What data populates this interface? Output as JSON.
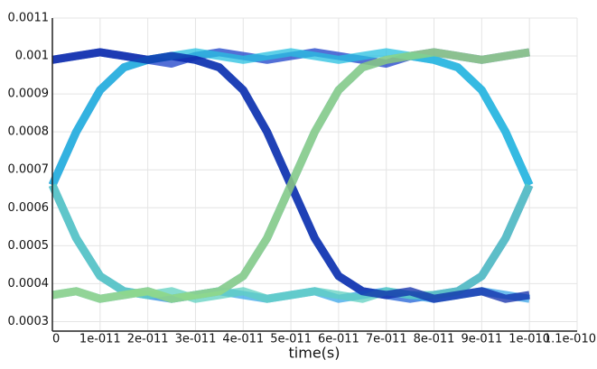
{
  "chart_data": {
    "type": "line",
    "x_label": "time(s)",
    "x": [
      0,
      5e-12,
      1e-11,
      1.5e-11,
      2e-11,
      2.5e-11,
      3e-11,
      3.5e-11,
      4e-11,
      4.5e-11,
      5e-11,
      5.5e-11,
      6e-11,
      6.5e-11,
      7e-11,
      7.5e-11,
      8e-11,
      8.5e-11,
      9e-11,
      9.5e-11,
      1e-10
    ],
    "series": [
      {
        "color": "#1f5fd6",
        "values": [
          0.00066,
          0.0008,
          0.00091,
          0.00097,
          0.00099,
          0.001,
          0.00099,
          0.00097,
          0.00091,
          0.0008,
          0.00066,
          0.00052,
          0.00042,
          0.00038,
          0.00037,
          0.00036,
          0.00037,
          0.00038,
          0.00042,
          0.00052,
          0.00066
        ]
      },
      {
        "color": "#2a8be0",
        "values": [
          0.00066,
          0.00052,
          0.00042,
          0.00038,
          0.00037,
          0.00036,
          0.00037,
          0.00038,
          0.00042,
          0.00052,
          0.00066,
          0.0008,
          0.00091,
          0.00097,
          0.00099,
          0.001,
          0.00099,
          0.00097,
          0.00091,
          0.0008,
          0.00066
        ]
      },
      {
        "color": "#1a3fc8",
        "values": [
          0.00099,
          0.001,
          0.00101,
          0.001,
          0.00099,
          0.00098,
          0.001,
          0.00101,
          0.001,
          0.00099,
          0.001,
          0.00101,
          0.001,
          0.00099,
          0.00098,
          0.001,
          0.00101,
          0.001,
          0.00099,
          0.001,
          0.00101
        ]
      },
      {
        "color": "#3aa6e8",
        "values": [
          0.00037,
          0.00038,
          0.00036,
          0.00037,
          0.00038,
          0.00036,
          0.00037,
          0.00038,
          0.00037,
          0.00036,
          0.00037,
          0.00038,
          0.00036,
          0.00037,
          0.00038,
          0.00037,
          0.00036,
          0.00037,
          0.00038,
          0.00037,
          0.00036
        ]
      },
      {
        "color": "#27c0e0",
        "values": [
          0.00066,
          0.0008,
          0.00091,
          0.00097,
          0.00099,
          0.001,
          0.00101,
          0.001,
          0.00099,
          0.001,
          0.00101,
          0.001,
          0.00099,
          0.001,
          0.00101,
          0.001,
          0.00099,
          0.00097,
          0.00091,
          0.0008,
          0.00066
        ]
      },
      {
        "color": "#5fd0c0",
        "values": [
          0.00066,
          0.00052,
          0.00042,
          0.00038,
          0.00037,
          0.00038,
          0.00036,
          0.00037,
          0.00038,
          0.00036,
          0.00037,
          0.00038,
          0.00037,
          0.00036,
          0.00038,
          0.00037,
          0.00037,
          0.00038,
          0.00042,
          0.00052,
          0.00066
        ]
      },
      {
        "color": "#0c2aa8",
        "values": [
          0.00099,
          0.001,
          0.00101,
          0.001,
          0.00099,
          0.001,
          0.00099,
          0.00097,
          0.00091,
          0.0008,
          0.00066,
          0.00052,
          0.00042,
          0.00038,
          0.00037,
          0.00038,
          0.00036,
          0.00037,
          0.00038,
          0.00036,
          0.00037
        ]
      },
      {
        "color": "#9fdc7a",
        "values": [
          0.00037,
          0.00038,
          0.00036,
          0.00037,
          0.00038,
          0.00036,
          0.00037,
          0.00038,
          0.00042,
          0.00052,
          0.00066,
          0.0008,
          0.00091,
          0.00097,
          0.00099,
          0.001,
          0.00101,
          0.001,
          0.00099,
          0.001,
          0.00101
        ]
      }
    ],
    "xlim": [
      0,
      1.1e-10
    ],
    "xticks": [
      0,
      {
        "value": 1e-11,
        "label": "1e-011"
      },
      {
        "value": 2e-11,
        "label": "2e-011"
      },
      {
        "value": 3e-11,
        "label": "3e-011"
      },
      {
        "value": 4e-11,
        "label": "4e-011"
      },
      {
        "value": 5e-11,
        "label": "5e-011"
      },
      {
        "value": 6e-11,
        "label": "6e-011"
      },
      {
        "value": 7e-11,
        "label": "7e-011"
      },
      {
        "value": 8e-11,
        "label": "8e-011"
      },
      {
        "value": 9e-11,
        "label": "9e-011"
      },
      {
        "value": 1e-10,
        "label": "1e-010"
      },
      {
        "value": 1.1e-10,
        "label": "1.1e-010"
      }
    ],
    "ylim": [
      0.000275,
      0.0011
    ],
    "yticks": [
      0.0003,
      0.0004,
      0.0005,
      0.0006,
      0.0007,
      0.0008,
      0.0009,
      0.001,
      0.0011
    ],
    "grid": true
  }
}
